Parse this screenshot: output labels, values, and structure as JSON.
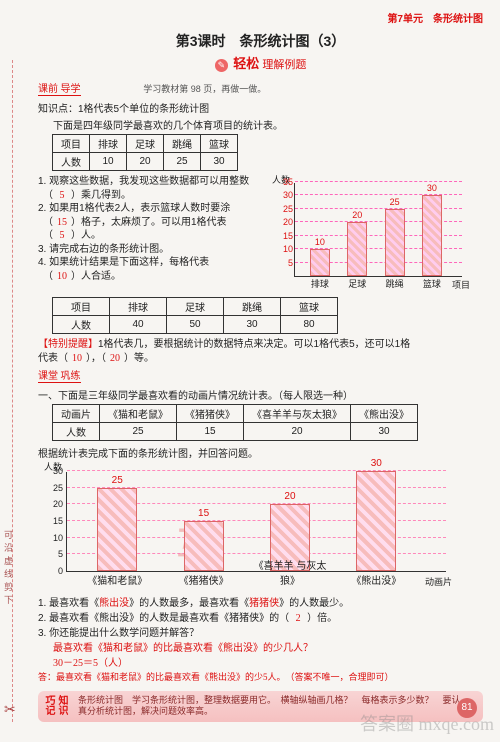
{
  "unit": "第7单元　条形统计图",
  "lesson": "第3课时　条形统计图（3）",
  "subtitle_script": "轻松",
  "subtitle_rest": "理解例题",
  "pre": {
    "label": "课前 导学",
    "note": "学习教材第 98 页，再做一做。"
  },
  "kp_title": "知识点：1格代表5个单位的条形统计图",
  "kp_intro": "下面是四年级同学最喜欢的几个体育项目的统计表。",
  "table1": {
    "headers": [
      "项目",
      "排球",
      "足球",
      "跳绳",
      "篮球"
    ],
    "row_label": "人数",
    "values": [
      "10",
      "20",
      "25",
      "30"
    ]
  },
  "q1": {
    "l1a": "1. 观察这些数据，我发现这些数据都可以用整数",
    "l1b": "（",
    "b1": "5",
    "l1c": "）乘几得到。",
    "l2a": "2. 如果用1格代表2人，表示篮球人数时要涂",
    "l2b": "（",
    "b2": "15",
    "l2c": "）格子，太麻烦了。可以用1格代表",
    "l2d": "（",
    "b3": "5",
    "l2e": "）人。",
    "l3": "3. 请完成右边的条形统计图。",
    "l4a": "4. 如果统计结果是下面这样，每格代表",
    "l4b": "（",
    "b4": "10",
    "l4c": "）人合适。"
  },
  "chart1": {
    "ylab": "人数",
    "xlab": "项目",
    "ymax": 35,
    "ystep": 5,
    "ticks": [
      "5",
      "10",
      "15",
      "20",
      "25",
      "30",
      "35"
    ],
    "cats": [
      "排球",
      "足球",
      "跳绳",
      "篮球"
    ],
    "vals": [
      10,
      20,
      25,
      30
    ],
    "bar_color": "#f7bcbc"
  },
  "table2": {
    "headers": [
      "项目",
      "排球",
      "足球",
      "跳绳",
      "篮球"
    ],
    "row_label": "人数",
    "values": [
      "40",
      "50",
      "30",
      "80"
    ]
  },
  "reminder": {
    "head": "【特别提醒】",
    "text_a": "1格代表几，要根据统计的数据特点来决定。可以1格代表5，还可以1格",
    "text_b": "代表（",
    "b1": "10",
    "text_c": "），（",
    "b2": "20",
    "text_d": "）等。"
  },
  "class_label": "课堂 巩练",
  "sec1_title": "一、下面是三年级同学最喜欢看的动画片情况统计表。（每人限选一种）",
  "table3": {
    "headers": [
      "动画片",
      "《猫和老鼠》",
      "《猪猪侠》",
      "《喜羊羊与灰太狼》",
      "《熊出没》"
    ],
    "row_label": "人数",
    "values": [
      "25",
      "15",
      "20",
      "30"
    ]
  },
  "sec1_note": "根据统计表完成下面的条形统计图，并回答问题。",
  "chart2": {
    "ylab": "人数",
    "xlab": "动画片",
    "ymax": 30,
    "ystep": 5,
    "ticks": [
      "0",
      "5",
      "10",
      "15",
      "20",
      "25",
      "30"
    ],
    "cats": [
      "《猫和老鼠》",
      "《猪猪侠》",
      "《喜羊羊\n与灰太狼》",
      "《熊出没》"
    ],
    "vals": [
      25,
      15,
      20,
      30
    ],
    "watermark": "互 动"
  },
  "ans": {
    "l1a": "1. 最喜欢看《",
    "b1": "熊出没",
    "l1b": "》的人数最多，最喜欢看《",
    "b2": "猪猪侠",
    "l1c": "》的人数最少。",
    "l2a": "2. 最喜欢看《熊出没》的人数是最喜欢看《猪猪侠》的（",
    "b3": "2",
    "l2b": "）倍。",
    "l3": "3. 你还能提出什么数学问题并解答？",
    "hw1": "最喜欢看《猫和老鼠》的比最喜欢看《熊出没》的少几人？",
    "hw2": "30－25＝5（人）",
    "hw3": "答：最喜欢看《猫和老鼠》的比最喜欢看《熊出没》的少5人。　（答案不唯一，合理即可）"
  },
  "tip": {
    "label": "知识巧记",
    "line1": "条形统计图　学习条形统计图，整理数据要用它。　横轴纵轴画几格？　每格表示多少数？　要认",
    "line2": "真分析统计图，解决问题效率高。"
  },
  "page_num": "81",
  "cut": "可沿虚线剪下",
  "bottom_wm": "答案圈  mxqe.com"
}
